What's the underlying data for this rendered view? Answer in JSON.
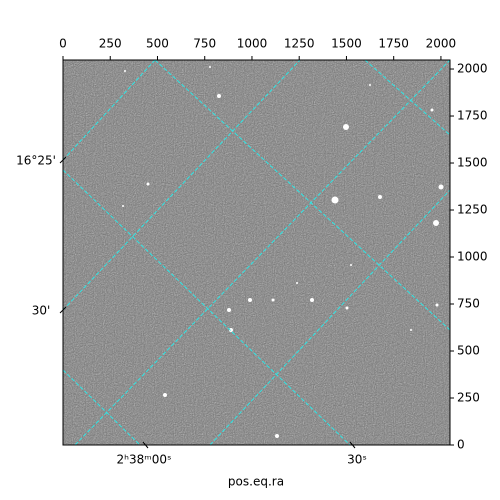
{
  "chart_data": {
    "type": "image",
    "x_label": "pos.eq.ra",
    "xlim": [
      0,
      2048
    ],
    "xticks": [
      0,
      250,
      500,
      750,
      1000,
      1250,
      1500,
      1750,
      2000
    ],
    "ylim": [
      0,
      2048
    ],
    "yticks": [
      0,
      250,
      500,
      750,
      1000,
      1250,
      1500,
      1750,
      2000
    ],
    "ra_tick_labels": [
      "2ʰ38ᵐ00ˢ",
      "30ˢ"
    ],
    "dec_tick_labels": [
      "16°25'",
      "30'"
    ]
  }
}
